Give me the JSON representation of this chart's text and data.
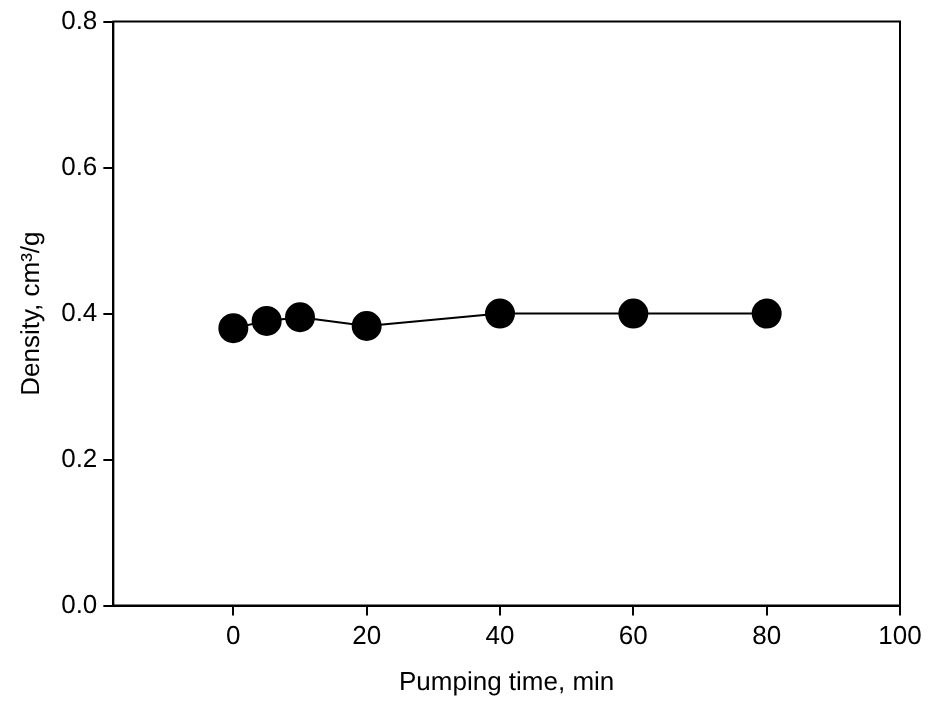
{
  "chart_data": {
    "type": "line",
    "xlabel": "Pumping time, min",
    "ylabel": "Density, cm³/g",
    "x": [
      0,
      5,
      10,
      20,
      40,
      60,
      80
    ],
    "series": [
      {
        "color": "#000000",
        "values": [
          0.38,
          0.39,
          0.395,
          0.383,
          0.4,
          0.4,
          0.4
        ]
      }
    ],
    "xlim": [
      -18,
      100
    ],
    "xticks": [
      0,
      20,
      40,
      60,
      80,
      100
    ],
    "ylim": [
      0,
      0.8
    ],
    "yticks": [
      {
        "value": 0,
        "label": "0.0"
      },
      {
        "value": 0.2,
        "label": "0.2"
      },
      {
        "value": 0.4,
        "label": "0.4"
      },
      {
        "value": 0.6,
        "label": "0.6"
      },
      {
        "value": 0.8,
        "label": "0.8"
      }
    ],
    "grid": false,
    "legend": false,
    "marker": "circle",
    "line_style": "solid"
  }
}
